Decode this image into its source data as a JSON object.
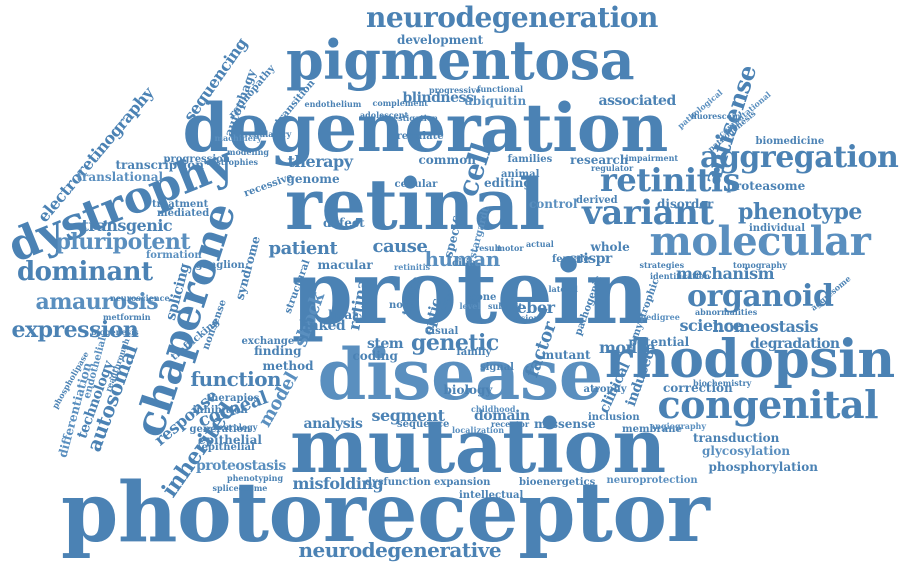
{
  "word_cloud": {
    "accent_color": "#4b82b4",
    "words": [
      "photoreceptor",
      "mutation",
      "protein",
      "disease",
      "retinal",
      "degeneration",
      "pigmentosa",
      "rhodopsin",
      "chaperone",
      "dystrophy",
      "molecular",
      "congenital",
      "neurodegeneration",
      "variant",
      "retinitis",
      "aggregation",
      "organoid",
      "amaurosis",
      "dominant",
      "expression",
      "phenotype",
      "cell",
      "inherited",
      "function",
      "pluripotent",
      "neurodegenerative",
      "transgenic",
      "autosomal",
      "corneal",
      "response",
      "genetic",
      "human",
      "leber",
      "mouse",
      "factor",
      "segment",
      "analysis",
      "misfolding",
      "proteostasis",
      "mechanism",
      "homeostasis",
      "science",
      "degradation",
      "correction",
      "transduction",
      "glycosylation",
      "phosphorylation",
      "proteasome",
      "antisense",
      "biomedicine",
      "associated",
      "blindness",
      "ubiquitin",
      "sequencing",
      "electroretinography",
      "therapy",
      "patient",
      "cause",
      "technology",
      "differentiation",
      "stem",
      "retina",
      "crispr",
      "splicing",
      "syndrome",
      "development",
      "translational",
      "transcription",
      "editing",
      "genome",
      "domain",
      "missense",
      "bioenergetics",
      "neuroprotection",
      "dysfunction",
      "expansion",
      "intellectual",
      "sequence",
      "receptor",
      "membrane",
      "angiography",
      "potential",
      "induced",
      "clinical",
      "atrophy",
      "inclusion",
      "biochemistry",
      "shock",
      "heat",
      "optic",
      "tissue",
      "cone",
      "visual",
      "cilia",
      "stargardt",
      "specific",
      "macular",
      "linked",
      "finding",
      "method",
      "exchange",
      "model",
      "epithelial",
      "generation",
      "inhibition",
      "treatment",
      "mediated",
      "ganglion",
      "formation",
      "autophagy",
      "retinopathy",
      "transition",
      "endothelium",
      "progressive",
      "functional",
      "pathological",
      "research",
      "families",
      "common",
      "regulate",
      "cellular",
      "animal",
      "control",
      "derived",
      "disorder",
      "whole",
      "individual",
      "pathogenic",
      "amyotrophic",
      "pedigree",
      "defect",
      "structural",
      "nonsense",
      "recessive",
      "therapies",
      "biology",
      "childhood",
      "phenotyping",
      "spliceosome",
      "epithelial",
      "neurology",
      "mutant",
      "regulator",
      "computational",
      "pathogenesis",
      "aggresome",
      "tomography",
      "strategies",
      "identification",
      "abnormalities",
      "localization",
      "fluorescein",
      "impairment",
      "progression",
      "dystrophies",
      "modeling",
      "regulatory",
      "machinery",
      "investigation",
      "complement",
      "adolescent",
      "neuroscience",
      "metformin",
      "biogenesis",
      "endothelial",
      "trafficking",
      "phospholipase",
      "readthrough",
      "coding",
      "family",
      "novel",
      "retinitis",
      "female",
      "result",
      "motor",
      "actual",
      "signal",
      "lateral",
      "level",
      "subunit",
      "vision",
      "outer"
    ]
  }
}
